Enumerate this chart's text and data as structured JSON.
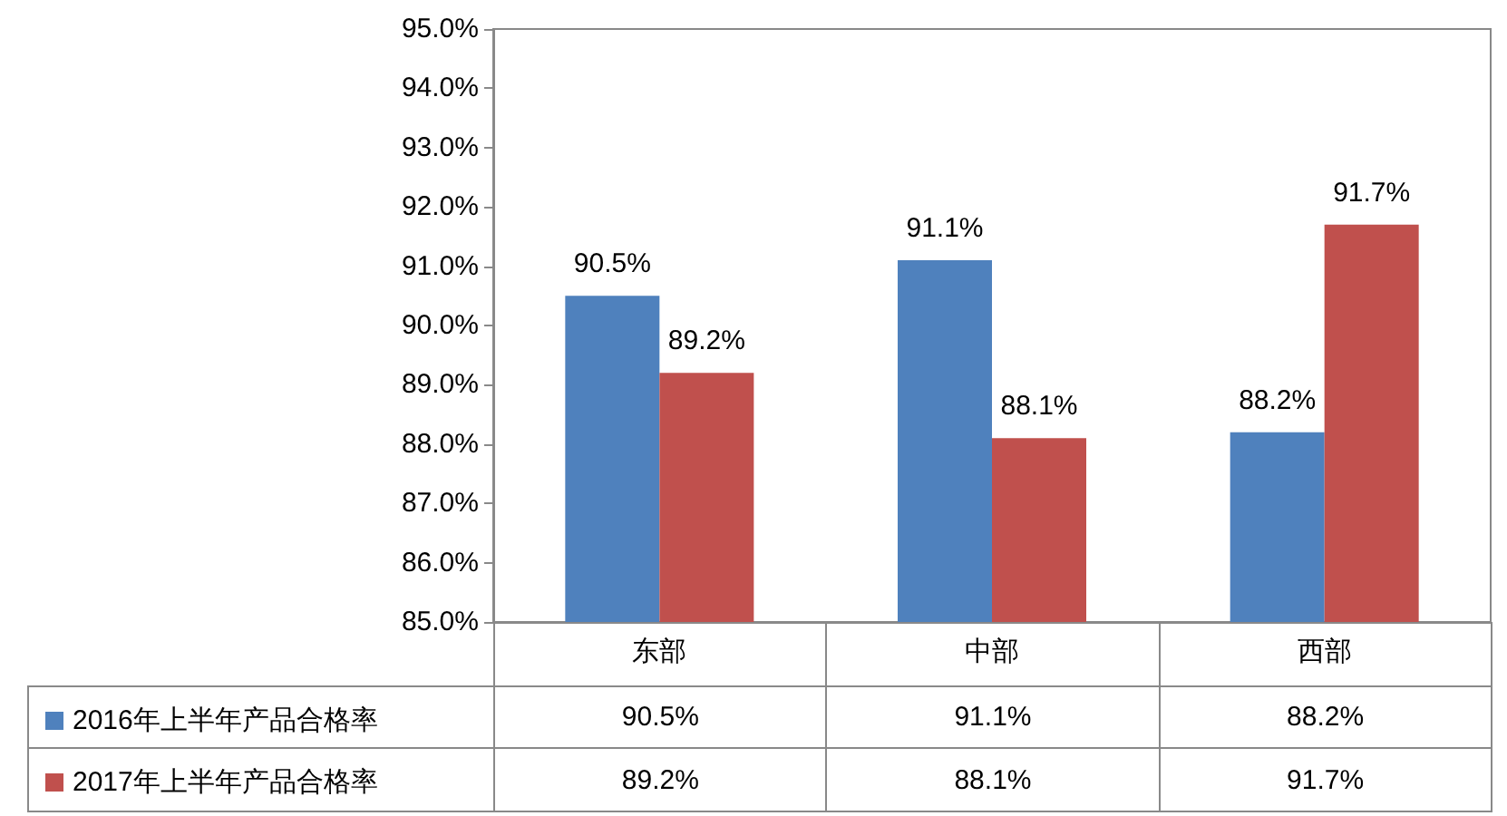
{
  "chart_data": {
    "type": "bar",
    "categories": [
      "东部",
      "中部",
      "西部"
    ],
    "series": [
      {
        "name": "2016年上半年产品合格率",
        "color": "#4f81bd",
        "values": [
          90.5,
          91.1,
          88.2
        ],
        "value_labels": [
          "90.5%",
          "91.1%",
          "88.2%"
        ]
      },
      {
        "name": "2017年上半年产品合格率",
        "color": "#c0504d",
        "values": [
          89.2,
          88.1,
          91.7
        ],
        "value_labels": [
          "89.2%",
          "88.1%",
          "91.7%"
        ]
      }
    ],
    "ylim": [
      85,
      95
    ],
    "yticks": [
      {
        "value": 85,
        "label": "85.0%"
      },
      {
        "value": 86,
        "label": "86.0%"
      },
      {
        "value": 87,
        "label": "87.0%"
      },
      {
        "value": 88,
        "label": "88.0%"
      },
      {
        "value": 89,
        "label": "89.0%"
      },
      {
        "value": 90,
        "label": "90.0%"
      },
      {
        "value": 91,
        "label": "91.0%"
      },
      {
        "value": 92,
        "label": "92.0%"
      },
      {
        "value": 93,
        "label": "93.0%"
      },
      {
        "value": 94,
        "label": "94.0%"
      },
      {
        "value": 95,
        "label": "95.0%"
      }
    ],
    "grid": false,
    "legend": "bottom left"
  }
}
